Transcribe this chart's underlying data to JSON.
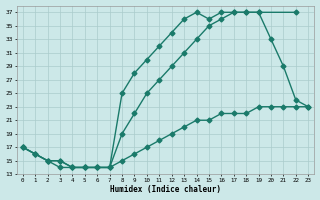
{
  "xlabel": "Humidex (Indice chaleur)",
  "bg_color": "#cce8e8",
  "line_color": "#1a7a6a",
  "xlim": [
    -0.5,
    23.5
  ],
  "ylim": [
    13,
    38
  ],
  "yticks": [
    13,
    15,
    17,
    19,
    21,
    23,
    25,
    27,
    29,
    31,
    33,
    35,
    37
  ],
  "xticks": [
    0,
    1,
    2,
    3,
    4,
    5,
    6,
    7,
    8,
    9,
    10,
    11,
    12,
    13,
    14,
    15,
    16,
    17,
    18,
    19,
    20,
    21,
    22,
    23
  ],
  "line1_x": [
    0,
    1,
    2,
    3,
    4,
    5,
    6,
    7,
    8,
    9,
    10,
    11,
    12,
    13,
    14,
    15,
    16,
    17,
    18,
    19,
    22
  ],
  "line1_y": [
    17,
    16,
    15,
    14,
    14,
    14,
    14,
    14,
    25,
    28,
    30,
    32,
    34,
    36,
    37,
    36,
    37,
    37,
    37,
    37,
    37
  ],
  "line2_x": [
    0,
    1,
    2,
    3,
    4,
    5,
    6,
    7,
    8,
    9,
    10,
    11,
    12,
    13,
    14,
    15,
    16,
    17,
    18,
    19,
    20,
    21,
    22,
    23
  ],
  "line2_y": [
    17,
    16,
    15,
    15,
    14,
    14,
    14,
    14,
    19,
    22,
    25,
    27,
    29,
    31,
    33,
    35,
    36,
    37,
    37,
    37,
    33,
    29,
    24,
    23
  ],
  "line3_x": [
    0,
    1,
    2,
    3,
    4,
    5,
    6,
    7,
    8,
    9,
    10,
    11,
    12,
    13,
    14,
    15,
    16,
    17,
    18,
    19,
    20,
    21,
    22,
    23
  ],
  "line3_y": [
    17,
    16,
    15,
    15,
    14,
    14,
    14,
    14,
    15,
    16,
    17,
    18,
    19,
    20,
    21,
    21,
    22,
    22,
    22,
    23,
    23,
    23,
    23,
    23
  ],
  "grid_color": "#aacccc",
  "marker": "D",
  "markersize": 2.5,
  "linewidth": 1.0
}
